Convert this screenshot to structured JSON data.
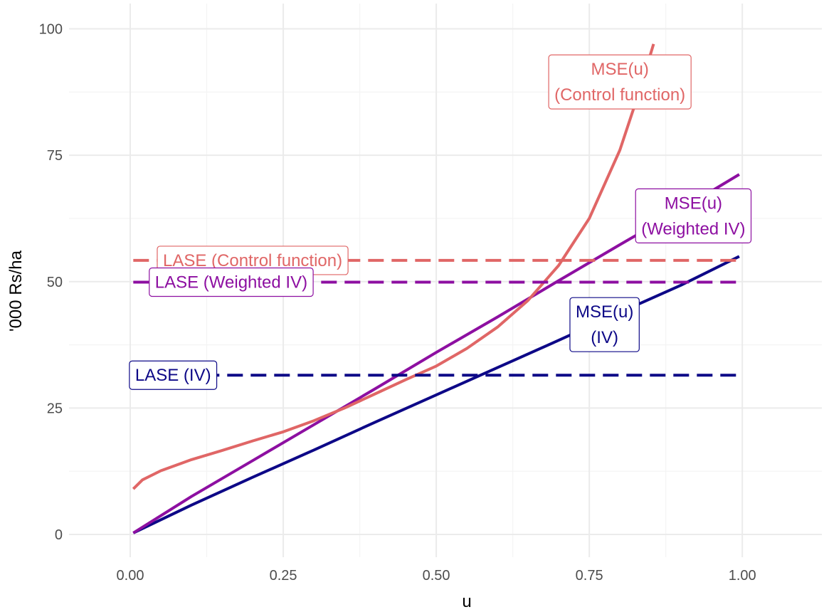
{
  "chart_data": {
    "type": "line",
    "title": "",
    "xlabel": "u",
    "ylabel": "'000 Rs/ha",
    "xlim": [
      -0.1,
      1.13
    ],
    "ylim": [
      -4.5,
      105
    ],
    "x_ticks": [
      0.0,
      0.25,
      0.5,
      0.75,
      1.0
    ],
    "x_tick_labels": [
      "0.00",
      "0.25",
      "0.50",
      "0.75",
      "1.00"
    ],
    "y_ticks": [
      0,
      25,
      50,
      75,
      100
    ],
    "y_tick_labels": [
      "0",
      "25",
      "50",
      "75",
      "100"
    ],
    "grid": true,
    "legend": "none",
    "series": [
      {
        "label_lines": [
          "MSE(u)",
          "(IV)"
        ],
        "color": "#0d0887",
        "style": "solid",
        "x": [
          0.005,
          0.1,
          0.2,
          0.3,
          0.4,
          0.5,
          0.6,
          0.7,
          0.8,
          0.9,
          0.995
        ],
        "y": [
          0.3,
          5.8,
          11.3,
          16.7,
          22.2,
          27.6,
          33.0,
          38.4,
          43.9,
          49.3,
          55.0
        ]
      },
      {
        "label_lines": [
          "MSE(u)",
          "(Weighted IV)"
        ],
        "color": "#8d0fa1",
        "style": "solid",
        "x": [
          0.005,
          0.1,
          0.2,
          0.3,
          0.4,
          0.5,
          0.6,
          0.7,
          0.8,
          0.9,
          0.995
        ],
        "y": [
          0.3,
          7.5,
          14.6,
          21.7,
          28.8,
          36.0,
          43.0,
          50.2,
          57.3,
          64.3,
          71.2
        ]
      },
      {
        "label_lines": [
          "MSE(u)",
          "(Control function)"
        ],
        "color": "#e06666",
        "style": "solid",
        "x": [
          0.005,
          0.02,
          0.05,
          0.1,
          0.15,
          0.2,
          0.25,
          0.3,
          0.35,
          0.4,
          0.45,
          0.5,
          0.55,
          0.6,
          0.65,
          0.7,
          0.75,
          0.8,
          0.83,
          0.855
        ],
        "y": [
          9.0,
          10.8,
          12.6,
          14.8,
          16.6,
          18.5,
          20.3,
          22.5,
          25.0,
          27.8,
          30.6,
          33.3,
          36.8,
          41.0,
          46.3,
          53.2,
          62.5,
          76.0,
          87.0,
          97.0
        ]
      },
      {
        "label": "LASE (IV)",
        "color": "#0d0887",
        "style": "dashed",
        "x": [
          0.005,
          0.995
        ],
        "y": [
          31.5,
          31.5
        ]
      },
      {
        "label": "LASE (Weighted IV)",
        "color": "#8d0fa1",
        "style": "dashed",
        "x": [
          0.005,
          0.995
        ],
        "y": [
          49.9,
          49.9
        ]
      },
      {
        "label": "LASE (Control function)",
        "color": "#e06666",
        "style": "dashed",
        "x": [
          0.005,
          0.995
        ],
        "y": [
          54.2,
          54.2
        ]
      }
    ],
    "annotations": [
      {
        "lines": [
          "MSE(u)",
          "(Control function)"
        ],
        "color": "#e06666",
        "x": 0.8,
        "y": 89.5
      },
      {
        "lines": [
          "MSE(u)",
          "(Weighted IV)"
        ],
        "color": "#8d0fa1",
        "x": 0.92,
        "y": 63.0
      },
      {
        "lines": [
          "MSE(u)",
          "(IV)"
        ],
        "color": "#0d0887",
        "x": 0.775,
        "y": 41.5
      },
      {
        "lines": [
          "LASE (Control function)"
        ],
        "color": "#e06666",
        "x": 0.2,
        "y": 54.2
      },
      {
        "lines": [
          "LASE (Weighted IV)"
        ],
        "color": "#8d0fa1",
        "x": 0.165,
        "y": 49.9
      },
      {
        "lines": [
          "LASE (IV)"
        ],
        "color": "#0d0887",
        "x": 0.07,
        "y": 31.5
      }
    ]
  }
}
